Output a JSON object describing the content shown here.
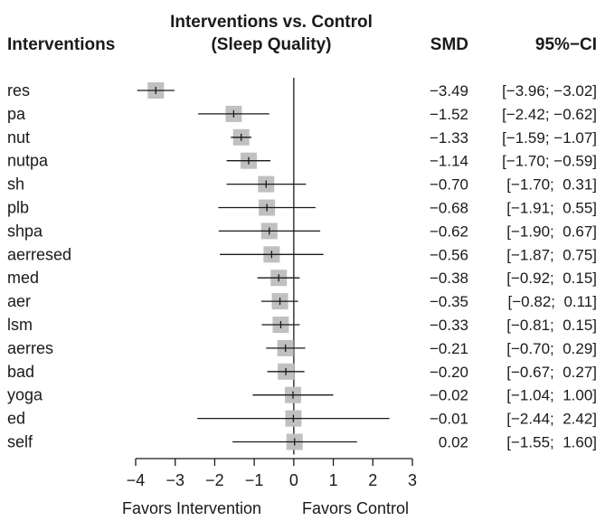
{
  "chart_data": {
    "type": "forest",
    "title_line1": "Interventions vs. Control",
    "title_line2": "(Sleep Quality)",
    "col_header_label": "Interventions",
    "col_header_smd": "SMD",
    "col_header_ci": "95%−CI",
    "xlim": [
      -4,
      3
    ],
    "xticks": [
      -4,
      -3,
      -2,
      -1,
      0,
      1,
      2,
      3
    ],
    "xtick_labels": [
      "−4",
      "−3",
      "−2",
      "−1",
      "0",
      "1",
      "2",
      "3"
    ],
    "xlabel_left": "Favors Intervention",
    "xlabel_right": "Favors Control",
    "rows": [
      {
        "label": "res",
        "smd": -3.49,
        "lo": -3.96,
        "hi": -3.02,
        "smd_text": "−3.49",
        "ci_text": "[−3.96; −3.02]",
        "weight": 1.0
      },
      {
        "label": "pa",
        "smd": -1.52,
        "lo": -2.42,
        "hi": -0.62,
        "smd_text": "−1.52",
        "ci_text": "[−2.42; −0.62]",
        "weight": 1.0
      },
      {
        "label": "nut",
        "smd": -1.33,
        "lo": -1.59,
        "hi": -1.07,
        "smd_text": "−1.33",
        "ci_text": "[−1.59; −1.07]",
        "weight": 1.0
      },
      {
        "label": "nutpa",
        "smd": -1.14,
        "lo": -1.7,
        "hi": -0.59,
        "smd_text": "−1.14",
        "ci_text": "[−1.70; −0.59]",
        "weight": 1.0
      },
      {
        "label": "sh",
        "smd": -0.7,
        "lo": -1.7,
        "hi": 0.31,
        "smd_text": "−0.70",
        "ci_text": "[−1.70;  0.31]",
        "weight": 1.0
      },
      {
        "label": "plb",
        "smd": -0.68,
        "lo": -1.91,
        "hi": 0.55,
        "smd_text": "−0.68",
        "ci_text": "[−1.91;  0.55]",
        "weight": 1.0
      },
      {
        "label": "shpa",
        "smd": -0.62,
        "lo": -1.9,
        "hi": 0.67,
        "smd_text": "−0.62",
        "ci_text": "[−1.90;  0.67]",
        "weight": 1.0
      },
      {
        "label": "aerresed",
        "smd": -0.56,
        "lo": -1.87,
        "hi": 0.75,
        "smd_text": "−0.56",
        "ci_text": "[−1.87;  0.75]",
        "weight": 1.0
      },
      {
        "label": "med",
        "smd": -0.38,
        "lo": -0.92,
        "hi": 0.15,
        "smd_text": "−0.38",
        "ci_text": "[−0.92;  0.15]",
        "weight": 1.0
      },
      {
        "label": "aer",
        "smd": -0.35,
        "lo": -0.82,
        "hi": 0.11,
        "smd_text": "−0.35",
        "ci_text": "[−0.82;  0.11]",
        "weight": 1.0
      },
      {
        "label": "lsm",
        "smd": -0.33,
        "lo": -0.81,
        "hi": 0.15,
        "smd_text": "−0.33",
        "ci_text": "[−0.81;  0.15]",
        "weight": 1.0
      },
      {
        "label": "aerres",
        "smd": -0.21,
        "lo": -0.7,
        "hi": 0.29,
        "smd_text": "−0.21",
        "ci_text": "[−0.70;  0.29]",
        "weight": 1.0
      },
      {
        "label": "bad",
        "smd": -0.2,
        "lo": -0.67,
        "hi": 0.27,
        "smd_text": "−0.20",
        "ci_text": "[−0.67;  0.27]",
        "weight": 1.0
      },
      {
        "label": "yoga",
        "smd": -0.02,
        "lo": -1.04,
        "hi": 1.0,
        "smd_text": "−0.02",
        "ci_text": "[−1.04;  1.00]",
        "weight": 1.0
      },
      {
        "label": "ed",
        "smd": -0.01,
        "lo": -2.44,
        "hi": 2.42,
        "smd_text": "−0.01",
        "ci_text": "[−2.44;  2.42]",
        "weight": 1.0
      },
      {
        "label": "self",
        "smd": 0.02,
        "lo": -1.55,
        "hi": 1.6,
        "smd_text": "0.02",
        "ci_text": "[−1.55;  1.60]",
        "weight": 1.0
      }
    ],
    "colors": {
      "box": "#c0c0c0",
      "line": "#1a1a1a",
      "text": "#1a1a1a"
    }
  }
}
